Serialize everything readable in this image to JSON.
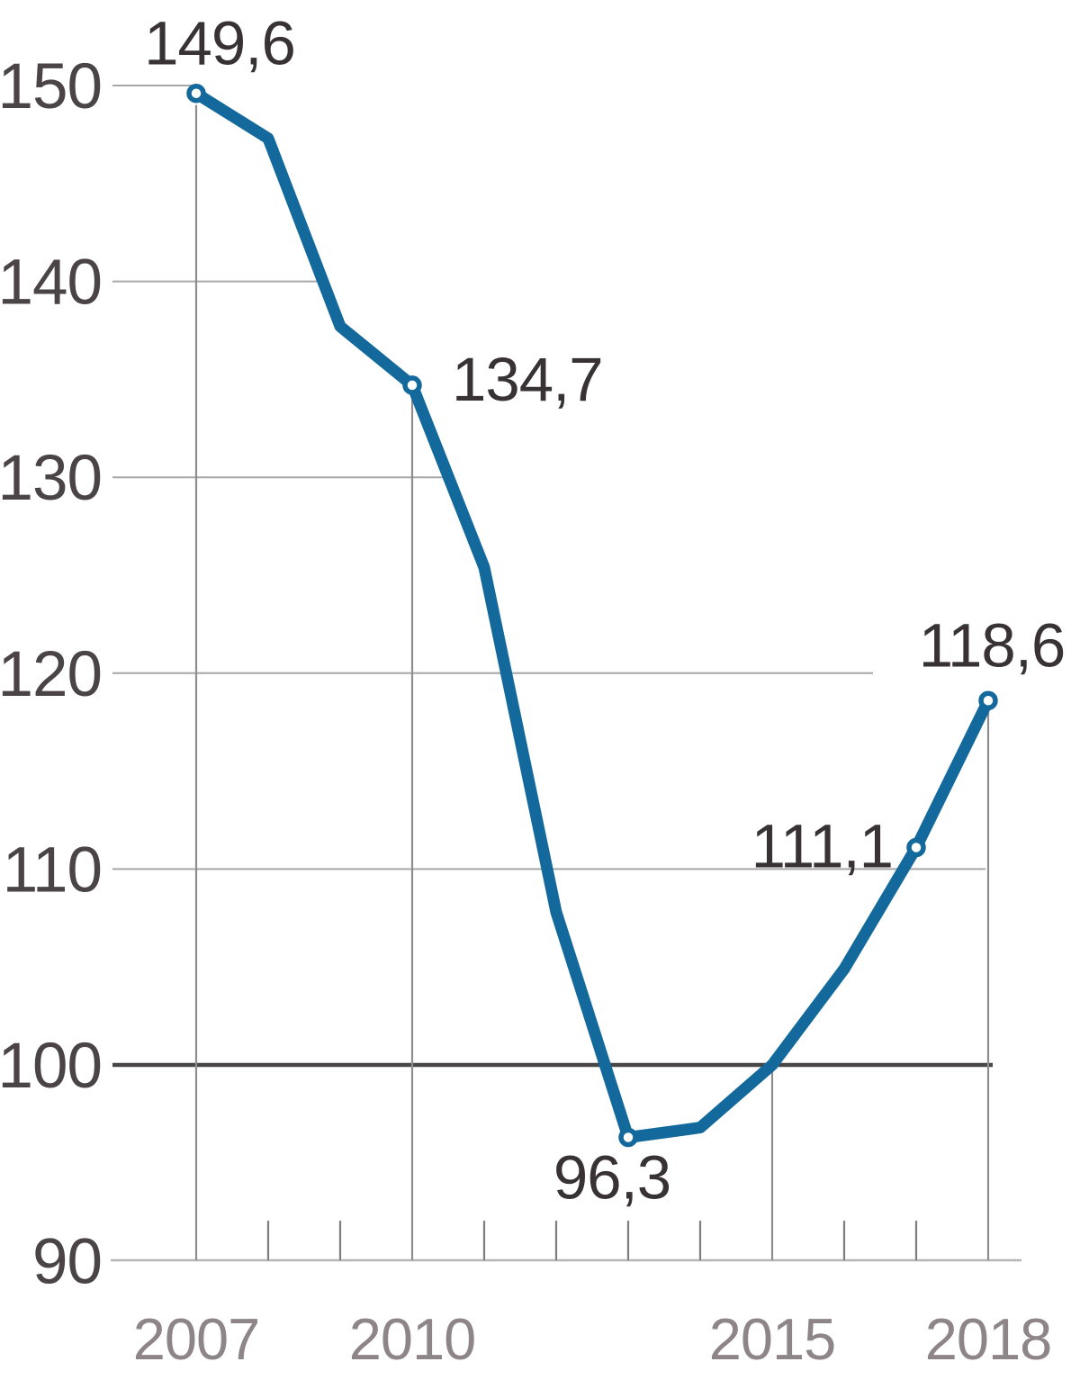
{
  "chart_data": {
    "type": "line",
    "title": "",
    "xlabel": "",
    "ylabel": "",
    "x": [
      2007,
      2008,
      2009,
      2010,
      2011,
      2012,
      2013,
      2014,
      2015,
      2016,
      2017,
      2018
    ],
    "values": [
      149.6,
      147.3,
      137.7,
      134.7,
      125.4,
      107.8,
      96.3,
      96.8,
      100.0,
      104.9,
      111.1,
      118.6
    ],
    "labeled_points": [
      {
        "x": 2007,
        "value": 149.6,
        "label": "149,6"
      },
      {
        "x": 2010,
        "value": 134.7,
        "label": "134,7"
      },
      {
        "x": 2013,
        "value": 96.3,
        "label": "96,3"
      },
      {
        "x": 2017,
        "value": 111.1,
        "label": "111,1"
      },
      {
        "x": 2018,
        "value": 118.6,
        "label": "118,6"
      }
    ],
    "y_ticks": [
      90,
      100,
      110,
      120,
      130,
      140,
      150
    ],
    "x_tick_labels": [
      "2007",
      "2010",
      "2015",
      "2018"
    ],
    "xlim": [
      2007,
      2018
    ],
    "ylim": [
      90,
      152
    ],
    "baseline_value": 100,
    "decimal_separator": ",",
    "grid": "partial horizontal gridlines; vertical droplines at labeled years; minor ticks at unlabeled years",
    "legend": "none"
  },
  "colors": {
    "line": "#13699c",
    "marker_fill": "#ffffff",
    "baseline": "#474545",
    "gridline": "#a8a6a6",
    "axis": "#b7b5b5",
    "y_label": "#4a4446",
    "x_label": "#8d8588",
    "data_label": "#383234",
    "background": "#ffffff"
  }
}
